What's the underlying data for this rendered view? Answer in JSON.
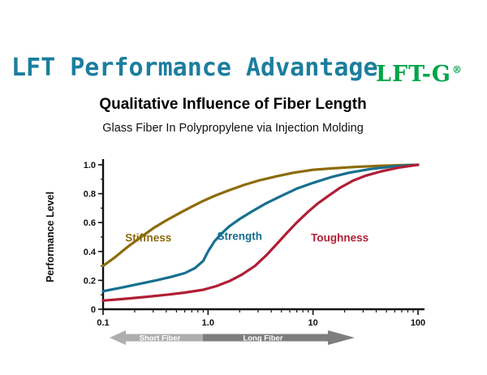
{
  "header": {
    "title": "LFT Performance Advantage",
    "title_color": "#1b7e9e",
    "logo_text": "LFT-G",
    "logo_reg": "®",
    "logo_color": "#00a44a"
  },
  "chart_data": {
    "type": "line",
    "title": "Qualitative Influence of Fiber Length",
    "subtitle": "Glass Fiber In Polypropylene via Injection Molding",
    "xlabel": "",
    "ylabel": "Performance Level",
    "x_scale": "log",
    "xlim": [
      0.1,
      100
    ],
    "ylim": [
      0,
      1.0
    ],
    "x_tick_values": [
      0.1,
      1,
      10,
      100
    ],
    "x_tick_labels": [
      "0.1",
      "1.0",
      "10",
      "100"
    ],
    "y_tick_values": [
      0,
      0.2,
      0.4,
      0.6,
      0.8,
      1.0
    ],
    "y_tick_labels": [
      "0",
      "0.2",
      "0.4",
      "0.6",
      "0.8",
      "1.0"
    ],
    "grid": false,
    "legend": "inline-labels",
    "series": [
      {
        "name": "Stiffness",
        "color": "#8d6b08",
        "label_at": {
          "x": 0.27,
          "y": 0.47
        },
        "points": [
          [
            0.1,
            0.3
          ],
          [
            0.13,
            0.36
          ],
          [
            0.17,
            0.43
          ],
          [
            0.22,
            0.49
          ],
          [
            0.3,
            0.56
          ],
          [
            0.4,
            0.615
          ],
          [
            0.55,
            0.67
          ],
          [
            0.7,
            0.71
          ],
          [
            0.9,
            0.75
          ],
          [
            1.2,
            0.79
          ],
          [
            1.6,
            0.825
          ],
          [
            2.2,
            0.86
          ],
          [
            3,
            0.89
          ],
          [
            4.5,
            0.92
          ],
          [
            6.5,
            0.945
          ],
          [
            10,
            0.965
          ],
          [
            15,
            0.975
          ],
          [
            25,
            0.985
          ],
          [
            45,
            0.993
          ],
          [
            100,
            1.0
          ]
        ]
      },
      {
        "name": "Strength",
        "color": "#176f8f",
        "label_at": {
          "x": 2.0,
          "y": 0.48
        },
        "points": [
          [
            0.1,
            0.125
          ],
          [
            0.15,
            0.15
          ],
          [
            0.22,
            0.175
          ],
          [
            0.32,
            0.2
          ],
          [
            0.45,
            0.225
          ],
          [
            0.6,
            0.25
          ],
          [
            0.75,
            0.285
          ],
          [
            0.9,
            0.335
          ],
          [
            1.0,
            0.4
          ],
          [
            1.15,
            0.47
          ],
          [
            1.35,
            0.525
          ],
          [
            1.6,
            0.575
          ],
          [
            2,
            0.625
          ],
          [
            2.6,
            0.675
          ],
          [
            3.5,
            0.73
          ],
          [
            5,
            0.785
          ],
          [
            7,
            0.835
          ],
          [
            10,
            0.875
          ],
          [
            15,
            0.915
          ],
          [
            22,
            0.945
          ],
          [
            35,
            0.97
          ],
          [
            60,
            0.99
          ],
          [
            100,
            1.0
          ]
        ]
      },
      {
        "name": "Toughness",
        "color": "#b01f35",
        "label_at": {
          "x": 18,
          "y": 0.47
        },
        "points": [
          [
            0.1,
            0.06
          ],
          [
            0.15,
            0.07
          ],
          [
            0.25,
            0.085
          ],
          [
            0.4,
            0.1
          ],
          [
            0.6,
            0.115
          ],
          [
            0.9,
            0.135
          ],
          [
            1.2,
            0.16
          ],
          [
            1.6,
            0.195
          ],
          [
            2.1,
            0.24
          ],
          [
            2.8,
            0.3
          ],
          [
            3.6,
            0.375
          ],
          [
            4.5,
            0.45
          ],
          [
            5.5,
            0.52
          ],
          [
            7,
            0.6
          ],
          [
            9,
            0.675
          ],
          [
            11,
            0.73
          ],
          [
            14,
            0.785
          ],
          [
            18,
            0.84
          ],
          [
            24,
            0.89
          ],
          [
            32,
            0.925
          ],
          [
            45,
            0.955
          ],
          [
            65,
            0.98
          ],
          [
            100,
            1.0
          ]
        ]
      }
    ]
  },
  "fiber_arrow": {
    "short_label": "Short Fiber",
    "long_label": "Long Fiber",
    "light_color": "#aeaeae",
    "dark_color": "#7e7e7e"
  }
}
